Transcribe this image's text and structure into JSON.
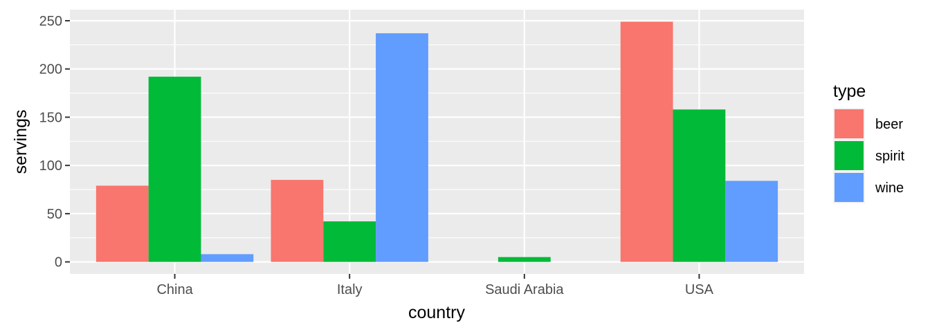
{
  "chart_data": {
    "type": "bar",
    "xlabel": "country",
    "ylabel": "servings",
    "categories": [
      "China",
      "Italy",
      "Saudi Arabia",
      "USA"
    ],
    "series": [
      {
        "name": "beer",
        "color": "#F8766D",
        "values": [
          79,
          85,
          0,
          249
        ]
      },
      {
        "name": "spirit",
        "color": "#00BA38",
        "values": [
          192,
          42,
          5,
          158
        ]
      },
      {
        "name": "wine",
        "color": "#619CFF",
        "values": [
          8,
          237,
          0,
          84
        ]
      }
    ],
    "ylim": [
      -12.45,
      261.45
    ],
    "yticks": [
      0,
      50,
      100,
      150,
      200,
      250
    ],
    "grid": true,
    "background": "#EBEBEB",
    "legend": {
      "title": "type",
      "position": "right"
    }
  }
}
